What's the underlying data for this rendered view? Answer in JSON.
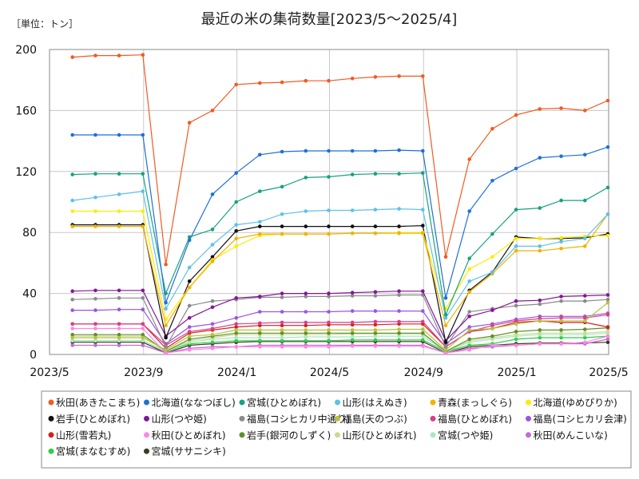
{
  "chart_data": {
    "type": "line",
    "title": "最近の米の集荷数量[2023/5〜2025/4]",
    "unit_label": "［単位：トン］",
    "xlabel": "",
    "ylabel": "",
    "ylim": [
      0,
      200
    ],
    "yticks": [
      0,
      40,
      80,
      120,
      160,
      200
    ],
    "xlim": [
      "2023-05-01",
      "2025-05-01"
    ],
    "xticks": [
      "2023/5",
      "2023/9",
      "2024/1",
      "2024/5",
      "2024/9",
      "2025/1",
      "2025/5"
    ],
    "grid": true,
    "legend_position": "bottom",
    "x": [
      "2023-05-31",
      "2023-06-30",
      "2023-07-31",
      "2023-08-31",
      "2023-09-30",
      "2023-10-31",
      "2023-11-30",
      "2023-12-31",
      "2024-01-31",
      "2024-02-29",
      "2024-03-31",
      "2024-04-30",
      "2024-05-31",
      "2024-06-30",
      "2024-07-31",
      "2024-08-31",
      "2024-09-30",
      "2024-10-31",
      "2024-11-30",
      "2024-12-31",
      "2025-01-31",
      "2025-02-28",
      "2025-03-31",
      "2025-04-30"
    ],
    "series": [
      {
        "name": "秋田(あきたこまち)",
        "color": "#F15A22",
        "values": [
          195,
          196,
          196,
          196.5,
          59,
          152,
          160,
          177,
          178,
          178.5,
          179.5,
          179.5,
          181,
          182,
          182.5,
          182.5,
          64,
          128,
          148,
          157,
          161,
          161.5,
          160,
          166.5
        ]
      },
      {
        "name": "北海道(ななつぼし)",
        "color": "#1F6FD9",
        "values": [
          144,
          144,
          144,
          144,
          34,
          75,
          105,
          119,
          131,
          133,
          133.5,
          133.5,
          133.5,
          133.5,
          134,
          133.5,
          37,
          94,
          114,
          122,
          129,
          130,
          131,
          136
        ]
      },
      {
        "name": "宮城(ひとめぼれ)",
        "color": "#16A37F",
        "values": [
          118,
          118.5,
          118.5,
          118.5,
          40,
          77,
          82,
          100,
          107,
          110,
          116,
          116.5,
          118,
          118.5,
          118.5,
          119,
          26,
          63,
          79,
          95,
          96,
          101,
          101,
          109.5
        ]
      },
      {
        "name": "山形(はえぬき)",
        "color": "#5DC1EA",
        "values": [
          101,
          103,
          105,
          107,
          30,
          57,
          72,
          85,
          87,
          92,
          94,
          94.5,
          94.5,
          95,
          95.5,
          95,
          24,
          48,
          54,
          71,
          71,
          74,
          76,
          92
        ]
      },
      {
        "name": "青森(まっしぐら)",
        "color": "#F2B200",
        "values": [
          84,
          84,
          84,
          84,
          19,
          44,
          61,
          76,
          79,
          79,
          79,
          79,
          79.5,
          79.5,
          79.5,
          79.5,
          19,
          41,
          53,
          68,
          68,
          69.5,
          71,
          92
        ]
      },
      {
        "name": "北海道(ゆめぴりか)",
        "color": "#FFEB00",
        "values": [
          94,
          94,
          94,
          94,
          23,
          44,
          62,
          71,
          78,
          79,
          79,
          79,
          79.5,
          79.5,
          80,
          80,
          30,
          56,
          64,
          76,
          76,
          76.5,
          77.5,
          78
        ]
      },
      {
        "name": "岩手(ひとめぼれ)",
        "color": "#111111",
        "values": [
          85,
          85,
          85,
          85,
          11,
          48,
          64,
          81,
          84,
          84,
          84,
          84,
          84,
          84,
          84,
          84.5,
          8,
          42,
          54,
          77,
          76,
          76,
          76.5,
          79
        ]
      },
      {
        "name": "山形(つや姫)",
        "color": "#86159A",
        "values": [
          41.5,
          42,
          42,
          42,
          12,
          24,
          31,
          37,
          38,
          40,
          40,
          40,
          40.5,
          41,
          41.5,
          41.5,
          9,
          25,
          29,
          35,
          35.5,
          38,
          38.5,
          39
        ]
      },
      {
        "name": "福島(コシヒカリ中通り)",
        "color": "#8A8A8A",
        "values": [
          36,
          36.5,
          37,
          37,
          5,
          32,
          35,
          36,
          37.5,
          37.5,
          38,
          38,
          38.5,
          38.5,
          39,
          39,
          5,
          28,
          30,
          32,
          33,
          35,
          35,
          36
        ]
      },
      {
        "name": "福島(天のつぶ)",
        "color": "#B8C23A",
        "values": [
          11,
          11,
          11,
          11,
          3,
          12,
          13,
          16,
          16,
          16,
          16,
          16,
          16,
          16,
          16.5,
          16.5,
          3,
          16,
          17,
          20,
          22,
          22,
          22,
          34
        ]
      },
      {
        "name": "福島(ひとめぼれ)",
        "color": "#D93E8C",
        "values": [
          20,
          20,
          20,
          20,
          6,
          15,
          17,
          20,
          20.5,
          21,
          21,
          21,
          21,
          21.5,
          21.5,
          21.5,
          5,
          15,
          19,
          22,
          23.5,
          24,
          24,
          26
        ]
      },
      {
        "name": "福島(コシヒカリ会津)",
        "color": "#9B55E0",
        "values": [
          29,
          29,
          29.5,
          29.5,
          7,
          18,
          20,
          24,
          28,
          28,
          28,
          28,
          28.5,
          28.5,
          28.5,
          28.5,
          7,
          18,
          20,
          23,
          25,
          25,
          25,
          27
        ]
      },
      {
        "name": "山形(雪若丸)",
        "color": "#D42020",
        "values": [
          20,
          20,
          20,
          20,
          4,
          14,
          16,
          18,
          19,
          19,
          19,
          19.5,
          19.5,
          19.5,
          20,
          20,
          5,
          15,
          17,
          21,
          22,
          21,
          21,
          18
        ]
      },
      {
        "name": "秋田(ひとめぼれ)",
        "color": "#FF86E3",
        "values": [
          17,
          17,
          17,
          17,
          1,
          3,
          4,
          5,
          5,
          5,
          5,
          5,
          5.5,
          5.5,
          5.5,
          5.5,
          1,
          3,
          6,
          6,
          7,
          7,
          8,
          12
        ]
      },
      {
        "name": "岩手(銀河のしずく)",
        "color": "#5E8F2A",
        "values": [
          13,
          13,
          13,
          13,
          2,
          10,
          12,
          14,
          14,
          14,
          14,
          14,
          14,
          14,
          14,
          14,
          2,
          10,
          12,
          15,
          16,
          16,
          16.5,
          17.5
        ]
      },
      {
        "name": "山形(ひとめぼれ)",
        "color": "#C9DA90",
        "values": [
          12,
          12,
          12,
          12,
          2,
          9,
          11,
          13,
          13,
          13,
          13,
          13,
          13.5,
          13.5,
          13.5,
          13.5,
          2,
          9,
          11,
          13,
          14,
          14,
          14,
          15
        ]
      },
      {
        "name": "宮城(つや姫)",
        "color": "#A8E8C0",
        "values": [
          9,
          9,
          9,
          9,
          2,
          8,
          10,
          11,
          11,
          11,
          11.5,
          11.5,
          11.5,
          12,
          12,
          12,
          2,
          8,
          10,
          12,
          13,
          13,
          13,
          14
        ]
      },
      {
        "name": "秋田(めんこいな)",
        "color": "#C36BD6",
        "values": [
          6,
          6,
          6,
          6,
          1,
          4,
          5,
          5,
          6,
          6,
          6,
          6,
          6,
          6,
          6,
          6,
          1,
          4,
          5,
          6,
          7,
          7,
          7,
          10
        ]
      },
      {
        "name": "宮城(まなむすめ)",
        "color": "#2ECF45",
        "values": [
          9,
          9,
          9,
          9,
          2,
          7,
          8,
          9,
          9,
          9,
          9,
          9,
          9.5,
          9.5,
          9.5,
          9.5,
          2,
          6,
          7,
          10,
          11,
          11,
          11,
          12
        ]
      },
      {
        "name": "宮城(ササニシキ)",
        "color": "#3B3B1E",
        "values": [
          8,
          8,
          8,
          8,
          1,
          6,
          7,
          8,
          8.5,
          8.5,
          8.5,
          8.5,
          8.5,
          8.5,
          8.5,
          8.5,
          1,
          5,
          6,
          7,
          7.5,
          7.5,
          7.5,
          8
        ]
      }
    ]
  }
}
